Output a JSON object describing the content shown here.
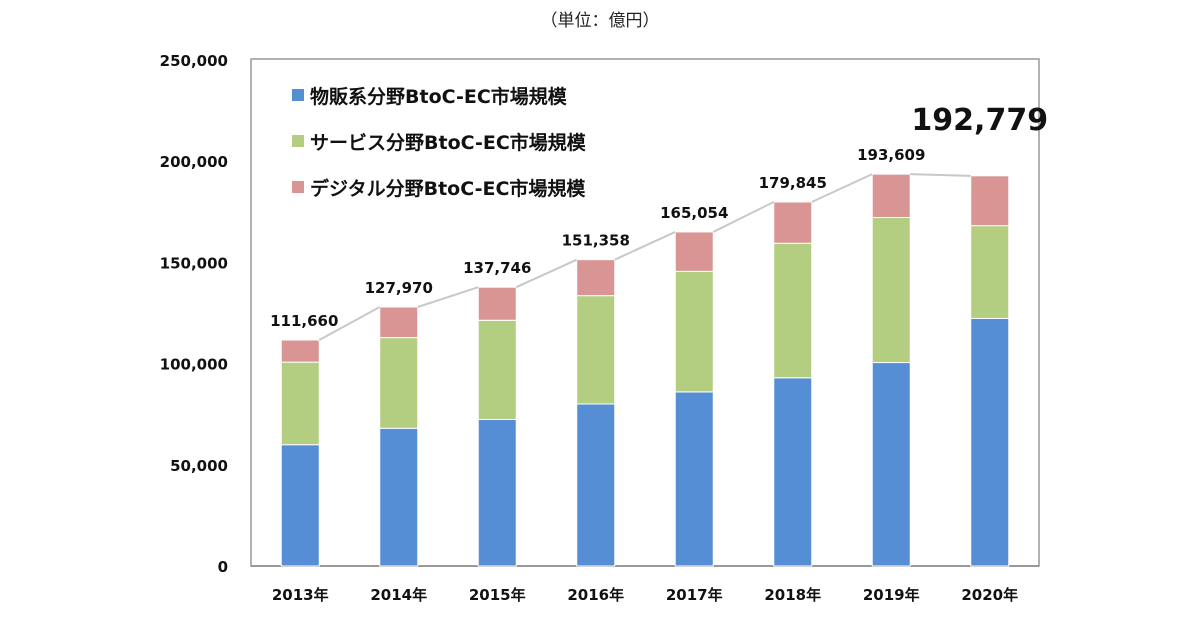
{
  "chart_data": {
    "type": "bar",
    "stacked": true,
    "unit_label": "（単位：億円）",
    "categories": [
      "2013年",
      "2014年",
      "2015年",
      "2016年",
      "2017年",
      "2018年",
      "2019年",
      "2020年"
    ],
    "series": [
      {
        "name": "物販系分野BtoC-EC市場規模",
        "color": "#558ed5",
        "values": [
          59931,
          68043,
          72398,
          80043,
          86008,
          92992,
          100515,
          122333
        ]
      },
      {
        "name": "サービス分野BtoC-EC市場規模",
        "color": "#b3cd81",
        "values": [
          40792,
          44816,
          49014,
          53532,
          59568,
          66471,
          71672,
          45832
        ]
      },
      {
        "name": "デジタル分野BtoC-EC市場規模",
        "color": "#d99594",
        "values": [
          10937,
          15111,
          16334,
          17782,
          19478,
          20382,
          21422,
          24614
        ]
      }
    ],
    "totals": [
      "111,660",
      "127,970",
      "137,746",
      "151,358",
      "165,054",
      "179,845",
      "193,609",
      "192,779"
    ],
    "highlight_total_index": 7,
    "ylim": [
      0,
      250000
    ],
    "yticks": [
      "0",
      "50,000",
      "100,000",
      "150,000",
      "200,000",
      "250,000"
    ],
    "ytick_values": [
      0,
      50000,
      100000,
      150000,
      200000,
      250000
    ],
    "legend_position": "top-left",
    "xlabel": "",
    "ylabel": ""
  }
}
